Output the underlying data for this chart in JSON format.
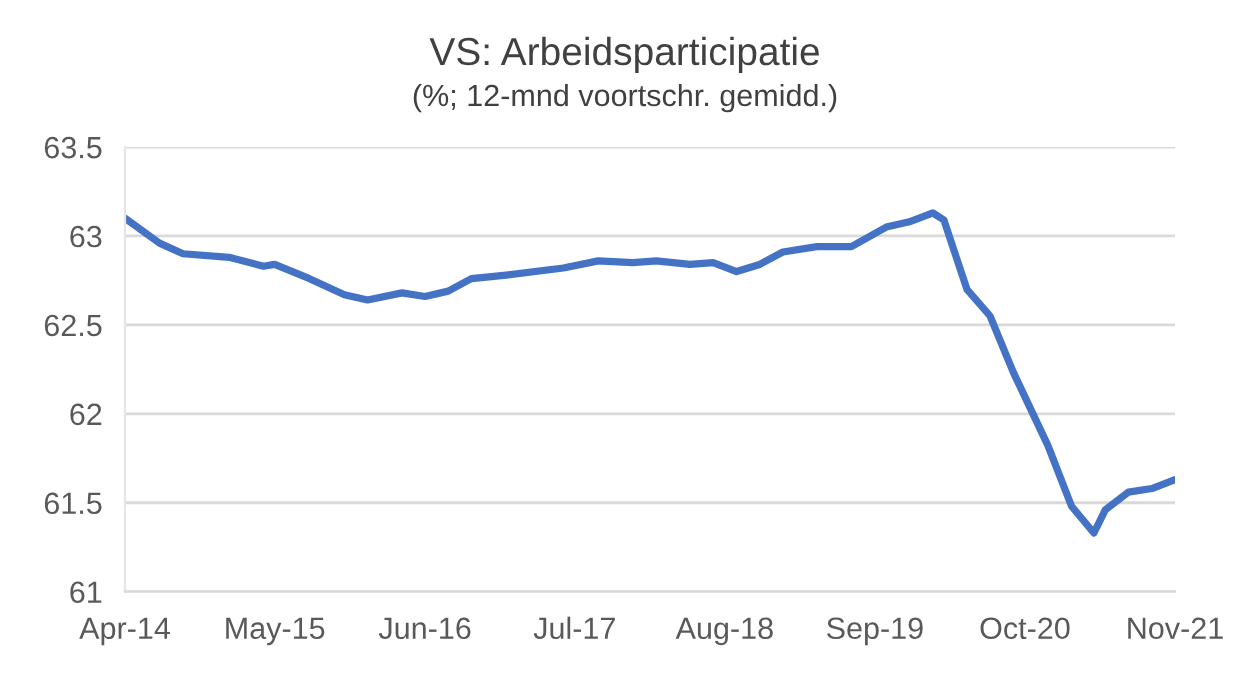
{
  "chart_data": {
    "type": "line",
    "title": "VS: Arbeidsparticipatie",
    "subtitle": "(%; 12-mnd voortschr. gemidd.)",
    "x": [
      "2014-04",
      "2014-07",
      "2014-09",
      "2015-01",
      "2015-04",
      "2015-05",
      "2015-08",
      "2015-11",
      "2016-01",
      "2016-04",
      "2016-06",
      "2016-08",
      "2016-10",
      "2017-01",
      "2017-06",
      "2017-09",
      "2017-12",
      "2018-02",
      "2018-05",
      "2018-07",
      "2018-09",
      "2018-11",
      "2019-01",
      "2019-04",
      "2019-07",
      "2019-10",
      "2019-12",
      "2020-02",
      "2020-03",
      "2020-05",
      "2020-07",
      "2020-09",
      "2020-12",
      "2021-02",
      "2021-04",
      "2021-05",
      "2021-07",
      "2021-09",
      "2021-11"
    ],
    "series": [
      {
        "color": "#4472c4",
        "values": [
          63.1,
          62.96,
          62.9,
          62.88,
          62.83,
          62.84,
          62.76,
          62.67,
          62.64,
          62.68,
          62.66,
          62.69,
          62.76,
          62.78,
          62.82,
          62.86,
          62.85,
          62.86,
          62.84,
          62.85,
          62.8,
          62.84,
          62.91,
          62.94,
          62.94,
          63.05,
          63.08,
          63.13,
          63.09,
          62.7,
          62.55,
          62.23,
          61.82,
          61.48,
          61.33,
          61.46,
          61.56,
          61.58,
          61.63
        ]
      }
    ],
    "xlim": [
      "2014-04",
      "2021-11"
    ],
    "xticks": [
      {
        "value": "2014-04",
        "label": "Apr-14"
      },
      {
        "value": "2015-05",
        "label": "May-15"
      },
      {
        "value": "2016-06",
        "label": "Jun-16"
      },
      {
        "value": "2017-07",
        "label": "Jul-17"
      },
      {
        "value": "2018-08",
        "label": "Aug-18"
      },
      {
        "value": "2019-09",
        "label": "Sep-19"
      },
      {
        "value": "2020-10",
        "label": "Oct-20"
      },
      {
        "value": "2021-11",
        "label": "Nov-21"
      }
    ],
    "ylim": [
      61,
      63.5
    ],
    "yticks": [
      61,
      61.5,
      62,
      62.5,
      63,
      63.5
    ],
    "grid": "y",
    "marker": "none",
    "line_style": "solid"
  }
}
